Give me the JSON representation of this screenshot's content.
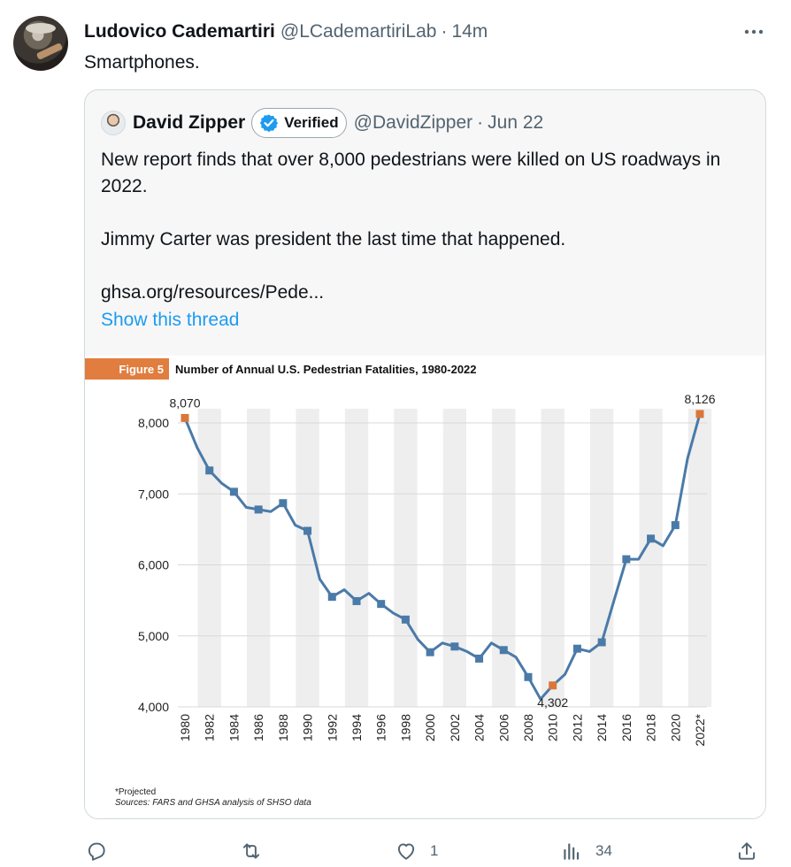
{
  "tweet": {
    "author_name": "Ludovico Cademartiri",
    "author_handle": "@LCademartiriLab",
    "separator": "·",
    "time": "14m",
    "text": "Smartphones."
  },
  "quote": {
    "author_name": "David Zipper",
    "verified_label": "Verified",
    "author_handle": "@DavidZipper",
    "separator": "·",
    "time": "Jun 22",
    "text": "New report finds that over 8,000 pedestrians were killed on US roadways in 2022.\n\nJimmy Carter was president the last time that happened.\n\nghsa.org/resources/Pede...",
    "show_thread": "Show this thread"
  },
  "figure": {
    "tag": "Figure 5",
    "title": "Number of Annual U.S. Pedestrian Fatalities, 1980-2022",
    "note": "*Projected",
    "source": "Sources: FARS and GHSA analysis of SHSO data"
  },
  "chart_data": {
    "type": "line",
    "title": "Number of Annual U.S. Pedestrian Fatalities, 1980-2022",
    "x": [
      1980,
      1981,
      1982,
      1983,
      1984,
      1985,
      1986,
      1987,
      1988,
      1989,
      1990,
      1991,
      1992,
      1993,
      1994,
      1995,
      1996,
      1997,
      1998,
      1999,
      2000,
      2001,
      2002,
      2003,
      2004,
      2005,
      2006,
      2007,
      2008,
      2009,
      2010,
      2011,
      2012,
      2013,
      2014,
      2015,
      2016,
      2017,
      2018,
      2019,
      2020,
      2021,
      2022
    ],
    "values": [
      8070,
      7650,
      7330,
      7150,
      7030,
      6810,
      6780,
      6750,
      6870,
      6560,
      6480,
      5800,
      5550,
      5650,
      5490,
      5600,
      5450,
      5320,
      5230,
      4950,
      4770,
      4900,
      4850,
      4780,
      4680,
      4900,
      4800,
      4700,
      4420,
      4110,
      4302,
      4460,
      4820,
      4780,
      4910,
      5500,
      6080,
      6080,
      6370,
      6270,
      6560,
      7500,
      8126
    ],
    "marked_x": [
      1980,
      1982,
      1984,
      1986,
      1988,
      1990,
      1992,
      1994,
      1996,
      1998,
      2000,
      2002,
      2004,
      2006,
      2008,
      2010,
      2012,
      2014,
      2016,
      2018,
      2020,
      2022
    ],
    "marked_values": [
      8070,
      7330,
      7030,
      6780,
      6870,
      6480,
      5550,
      5490,
      5450,
      5230,
      4770,
      4850,
      4680,
      4800,
      4420,
      4302,
      4820,
      4910,
      6080,
      6370,
      6560,
      8126
    ],
    "tick_labels": [
      "1980",
      "1982",
      "1984",
      "1986",
      "1988",
      "1990",
      "1992",
      "1994",
      "1996",
      "1998",
      "2000",
      "2002",
      "2004",
      "2006",
      "2008",
      "2010",
      "2012",
      "2014",
      "2016",
      "2018",
      "2020",
      "2022*"
    ],
    "y_ticks": [
      4000,
      5000,
      6000,
      7000,
      8000
    ],
    "y_tick_labels": [
      "4,000",
      "5,000",
      "6,000",
      "7,000",
      "8,000"
    ],
    "ylim": [
      4000,
      8200
    ],
    "annotations": [
      {
        "year": 1980,
        "label": "8,070"
      },
      {
        "year": 2010,
        "label": "4,302"
      },
      {
        "year": 2022,
        "label": "8,126"
      }
    ],
    "line_color": "#4a7aa8",
    "highlight_color": "#d9773a",
    "grid": true
  },
  "actions": {
    "reply_count": "",
    "retweet_count": "",
    "like_count": "1",
    "views_count": "34"
  },
  "colors": {
    "accent": "#1d9bf0",
    "muted": "#536471",
    "figure_tag": "#e17d3e"
  }
}
